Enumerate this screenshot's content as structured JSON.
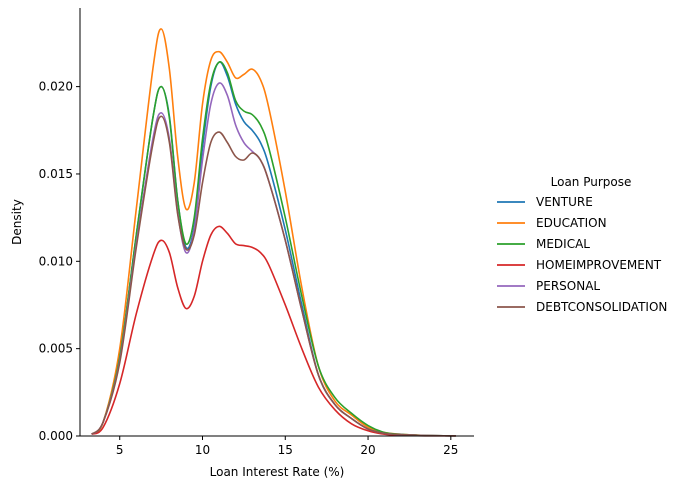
{
  "chart_data": {
    "type": "line",
    "title": "",
    "xlabel": "Loan Interest Rate (%)",
    "ylabel": "Density",
    "xlim": [
      2.6,
      26.4
    ],
    "ylim": [
      0,
      0.0245
    ],
    "xticks": [
      5,
      10,
      15,
      20,
      25
    ],
    "yticks": [
      0.0,
      0.005,
      0.01,
      0.015,
      0.02
    ],
    "ytick_labels": [
      "0.000",
      "0.005",
      "0.010",
      "0.015",
      "0.020"
    ],
    "grid": false,
    "legend": {
      "title": "Loan Purpose",
      "placement": "right-outside"
    },
    "x": [
      3.3,
      4.0,
      5.0,
      6.0,
      7.0,
      7.5,
      8.0,
      8.5,
      9.0,
      9.5,
      10.0,
      10.5,
      11.0,
      11.5,
      12.0,
      12.5,
      13.0,
      13.5,
      14.0,
      15.0,
      16.0,
      17.0,
      18.0,
      19.0,
      20.0,
      21.0,
      22.0,
      23.0,
      24.0,
      25.3
    ],
    "series": [
      {
        "name": "VENTURE",
        "color": "#1f77b4",
        "values": [
          0.0001,
          0.0008,
          0.0045,
          0.0115,
          0.0182,
          0.02,
          0.0183,
          0.0135,
          0.0108,
          0.012,
          0.0165,
          0.02,
          0.0214,
          0.0206,
          0.019,
          0.018,
          0.0175,
          0.0168,
          0.0155,
          0.0118,
          0.0075,
          0.0035,
          0.0018,
          0.001,
          0.0004,
          0.00015,
          8e-05,
          4e-05,
          2e-05,
          1e-05
        ]
      },
      {
        "name": "EDUCATION",
        "color": "#ff7f0e",
        "values": [
          0.0001,
          0.0008,
          0.005,
          0.013,
          0.021,
          0.0233,
          0.021,
          0.016,
          0.013,
          0.0145,
          0.019,
          0.0215,
          0.022,
          0.0214,
          0.0205,
          0.0207,
          0.021,
          0.0204,
          0.0188,
          0.014,
          0.0085,
          0.004,
          0.002,
          0.0012,
          0.0005,
          0.0002,
          0.0001,
          5e-05,
          2e-05,
          1e-05
        ]
      },
      {
        "name": "MEDICAL",
        "color": "#2ca02c",
        "values": [
          0.0001,
          0.0008,
          0.0045,
          0.0115,
          0.0182,
          0.02,
          0.0182,
          0.0135,
          0.011,
          0.0125,
          0.017,
          0.0202,
          0.0214,
          0.0208,
          0.0192,
          0.0186,
          0.0184,
          0.0178,
          0.0165,
          0.0125,
          0.008,
          0.004,
          0.0022,
          0.0013,
          0.0006,
          0.0002,
          0.0001,
          5e-05,
          2e-05,
          1e-05
        ]
      },
      {
        "name": "HOMEIMPROVEMENT",
        "color": "#d62728",
        "values": [
          0.0001,
          0.0005,
          0.003,
          0.007,
          0.0103,
          0.0112,
          0.0105,
          0.0085,
          0.0073,
          0.008,
          0.01,
          0.0115,
          0.012,
          0.0116,
          0.011,
          0.0109,
          0.0108,
          0.0105,
          0.0098,
          0.0075,
          0.005,
          0.0028,
          0.0015,
          0.0007,
          0.0003,
          0.0001,
          5e-05,
          2e-05,
          1e-05,
          1e-05
        ]
      },
      {
        "name": "PERSONAL",
        "color": "#9467bd",
        "values": [
          0.0001,
          0.0008,
          0.0043,
          0.011,
          0.017,
          0.0185,
          0.017,
          0.0128,
          0.0105,
          0.0118,
          0.0158,
          0.019,
          0.0202,
          0.0195,
          0.0178,
          0.0168,
          0.0163,
          0.0158,
          0.0146,
          0.0112,
          0.0072,
          0.0035,
          0.0018,
          0.001,
          0.0004,
          0.00015,
          8e-05,
          4e-05,
          2e-05,
          1e-05
        ]
      },
      {
        "name": "DEBTCONSOLIDATION",
        "color": "#8c564b",
        "values": [
          0.0001,
          0.0008,
          0.0042,
          0.0108,
          0.0167,
          0.0183,
          0.0168,
          0.0127,
          0.0107,
          0.0115,
          0.0145,
          0.0168,
          0.0174,
          0.0168,
          0.016,
          0.0158,
          0.0162,
          0.0158,
          0.0146,
          0.0112,
          0.0072,
          0.0035,
          0.0018,
          0.001,
          0.0004,
          0.00015,
          8e-05,
          4e-05,
          2e-05,
          1e-05
        ]
      }
    ]
  }
}
